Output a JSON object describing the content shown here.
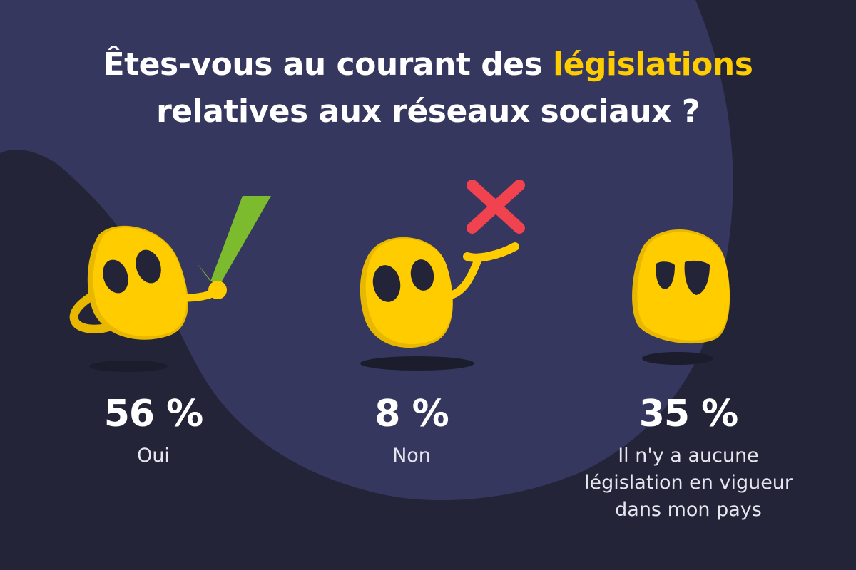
{
  "title": {
    "part1": "Êtes-vous au courant des ",
    "highlight": "législations",
    "part2": "relatives aux réseaux sociaux ?"
  },
  "stats": [
    {
      "percent": "56 %",
      "label": "Oui"
    },
    {
      "percent": "8 %",
      "label": "Non"
    },
    {
      "percent": "35 %",
      "label": "Il n'y a aucune\nlégislation en vigueur\ndans mon pays"
    }
  ],
  "icons": {
    "mascot1": "ghost-mascot-thumbs-check",
    "mascot2": "ghost-mascot-shrug-cross",
    "mascot3": "ghost-mascot-skeptical"
  },
  "colors": {
    "background": "#232438",
    "blob": "#36375e",
    "accent": "#ffcc00",
    "check": "#7dbb2e",
    "cross": "#f0424f"
  }
}
